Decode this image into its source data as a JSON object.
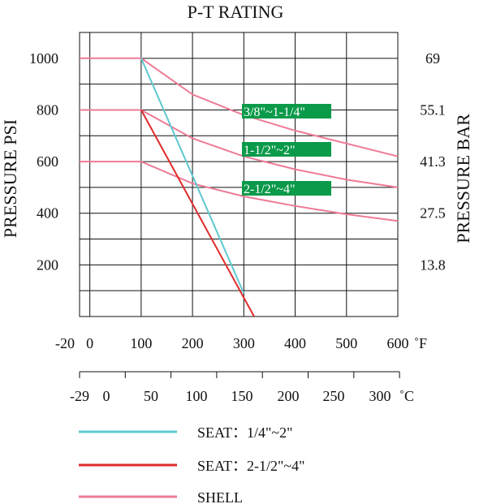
{
  "chart_data": {
    "type": "line",
    "title": "P-T RATING",
    "ylabel_left": "PRESSURE PSI",
    "ylabel_right": "PRESSURE BAR",
    "x_unit_f": "˚F",
    "x_unit_c": "˚C",
    "xlim_f": [
      -20,
      600
    ],
    "ylim_psi": [
      0,
      1100
    ],
    "x_ticks_f": [
      "-20",
      "0",
      "100",
      "200",
      "300",
      "400",
      "500",
      "600"
    ],
    "x_ticks_c": [
      "-29",
      "0",
      "50",
      "100",
      "150",
      "200",
      "250",
      "300"
    ],
    "y_ticks_left": [
      "200",
      "400",
      "600",
      "800",
      "1000"
    ],
    "y_ticks_right": [
      "13.8",
      "27.5",
      "41.3",
      "55.1",
      "69"
    ],
    "grid": true,
    "colors": {
      "seat_small": "#5fc8cf",
      "seat_large": "#e02b2b",
      "shell": "#ee7a95",
      "label_box": "#0a9a4a"
    },
    "series": [
      {
        "name": "SHELL",
        "size_label": "3/8\"~1-1/4\"",
        "color": "#ee7a95",
        "points": [
          [
            -20,
            1000
          ],
          [
            100,
            1000
          ],
          [
            200,
            860
          ],
          [
            300,
            780
          ],
          [
            400,
            720
          ],
          [
            500,
            670
          ],
          [
            600,
            620
          ]
        ]
      },
      {
        "name": "SHELL",
        "size_label": "1-1/2\"~2\"",
        "color": "#ee7a95",
        "points": [
          [
            -20,
            800
          ],
          [
            100,
            800
          ],
          [
            200,
            690
          ],
          [
            300,
            620
          ],
          [
            400,
            570
          ],
          [
            500,
            530
          ],
          [
            600,
            500
          ]
        ]
      },
      {
        "name": "SHELL",
        "size_label": "2-1/2\"~4\"",
        "color": "#ee7a95",
        "points": [
          [
            -20,
            600
          ],
          [
            100,
            600
          ],
          [
            200,
            515
          ],
          [
            300,
            465
          ],
          [
            400,
            428
          ],
          [
            500,
            396
          ],
          [
            600,
            370
          ]
        ]
      },
      {
        "name": "SEAT：1/4\"~2\"",
        "color": "#5fc8cf",
        "points": [
          [
            100,
            1000
          ],
          [
            300,
            90
          ]
        ]
      },
      {
        "name": "SEAT：2-1/2\"~4\"",
        "color": "#e02b2b",
        "points": [
          [
            100,
            800
          ],
          [
            320,
            0
          ]
        ]
      }
    ]
  },
  "legend": [
    {
      "label": "SEAT：1/4\"~2\"",
      "color": "#5fc8cf"
    },
    {
      "label": "SEAT：2-1/2\"~4\"",
      "color": "#e02b2b"
    },
    {
      "label": "SHELL",
      "color": "#ee7a95"
    }
  ]
}
